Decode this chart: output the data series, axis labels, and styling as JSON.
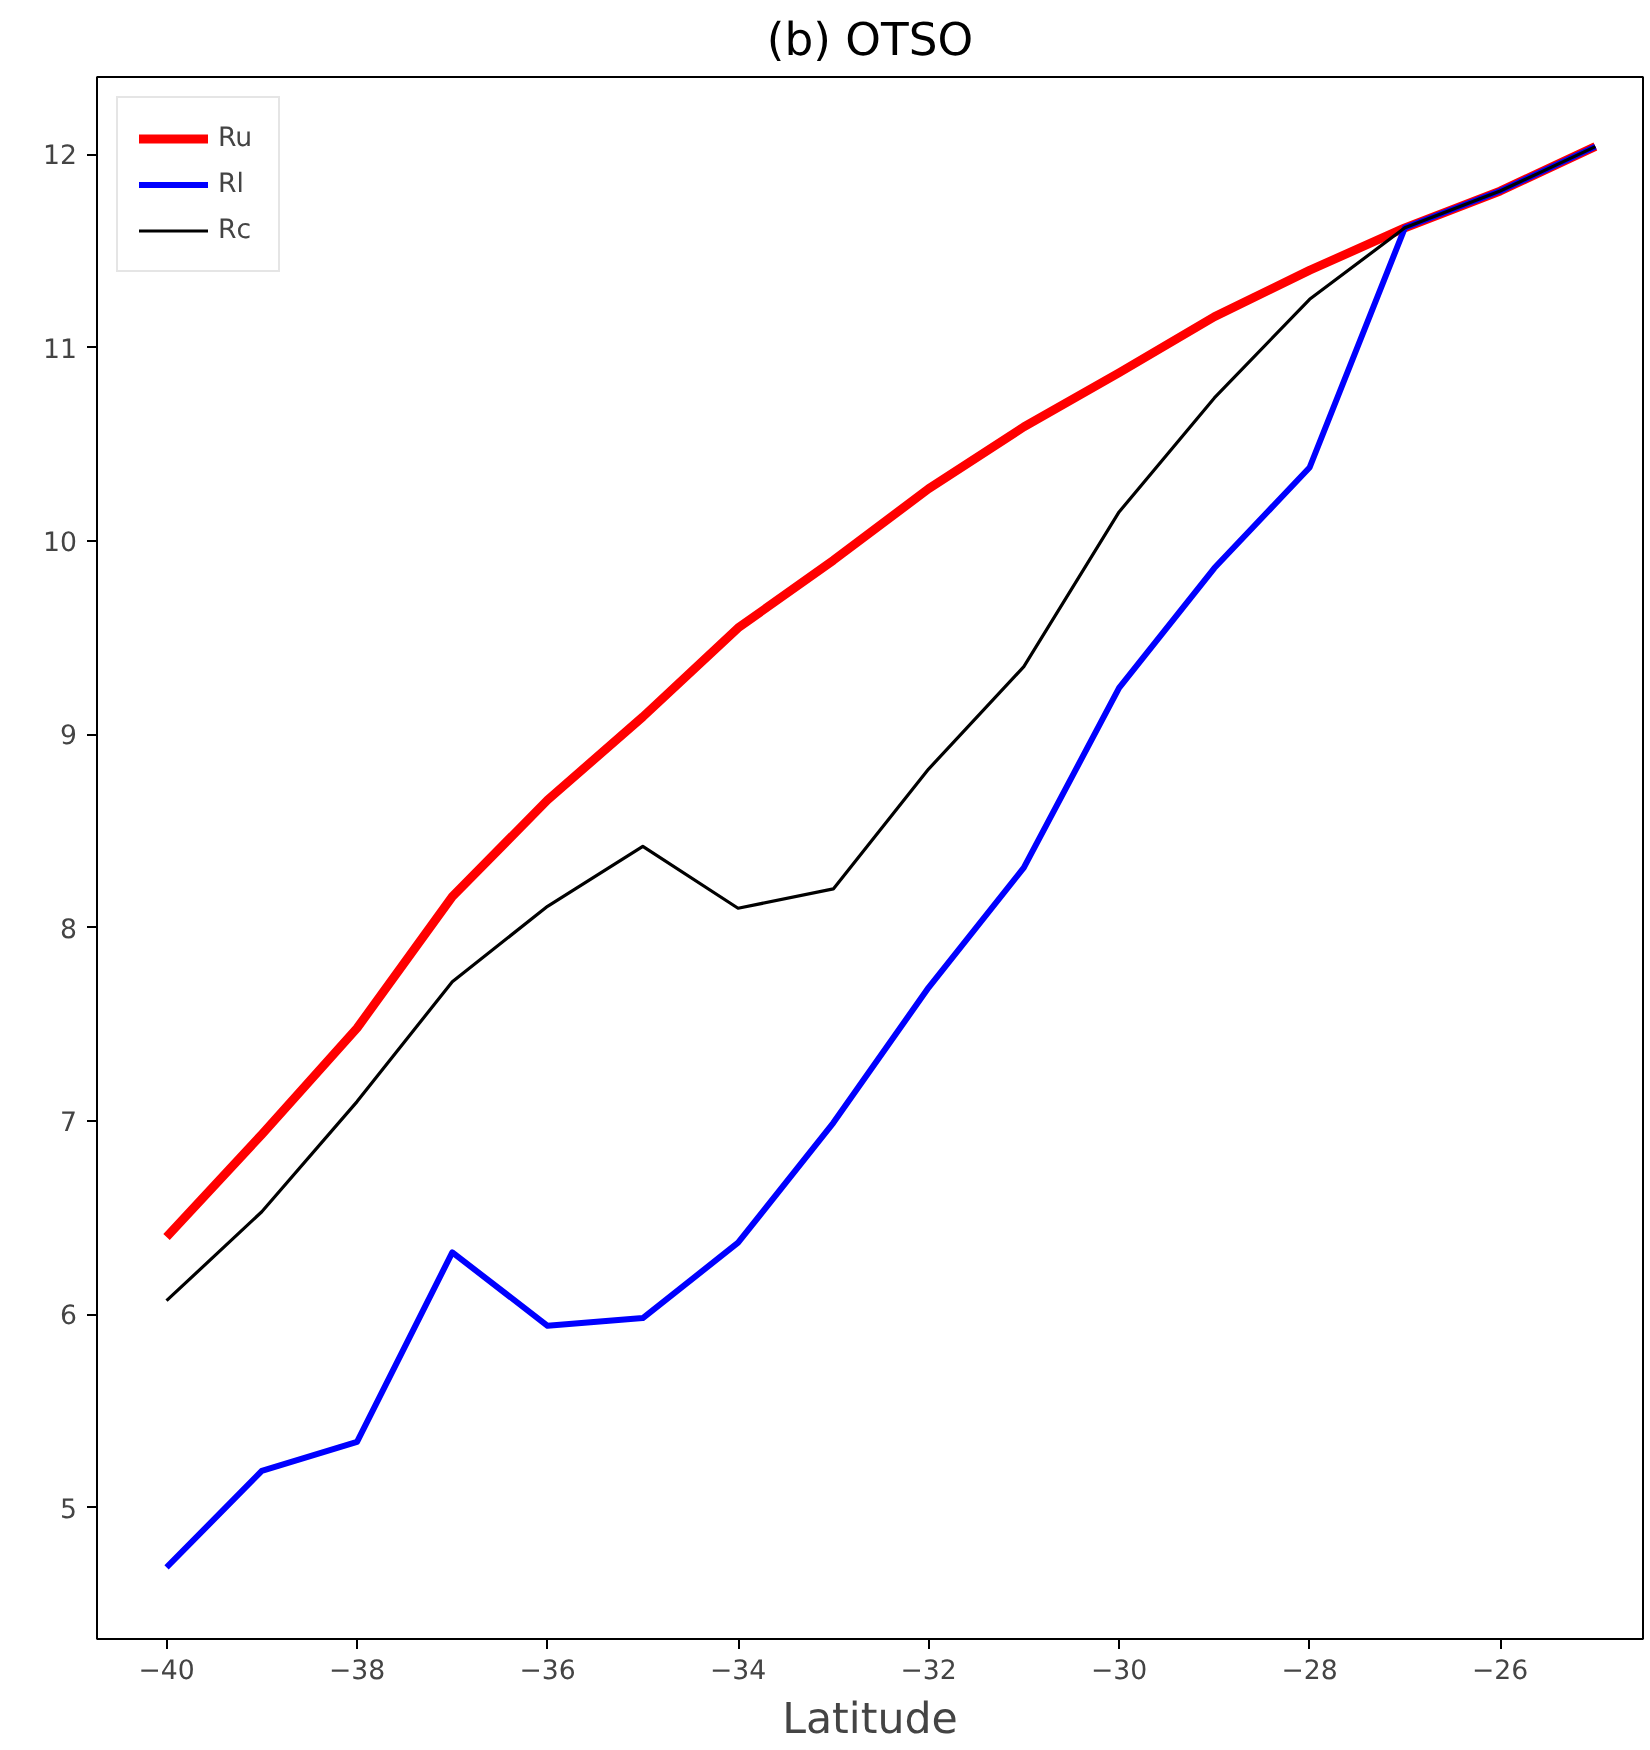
{
  "chart_data": {
    "type": "line",
    "title": "(b) OTSO",
    "xlabel": "Latitude",
    "x": [
      -40,
      -39,
      -38,
      -37,
      -36,
      -35,
      -34,
      -33,
      -32,
      -31,
      -30,
      -29,
      -28,
      -27,
      -26,
      -25
    ],
    "series": [
      {
        "name": "Ru",
        "color": "#ff0000",
        "values": [
          6.4,
          6.93,
          7.48,
          8.16,
          8.66,
          9.09,
          9.55,
          9.9,
          10.27,
          10.59,
          10.87,
          11.16,
          11.4,
          11.62,
          11.81,
          12.04
        ]
      },
      {
        "name": "Rl",
        "color": "#0000ff",
        "values": [
          4.69,
          5.19,
          5.34,
          6.32,
          5.94,
          5.98,
          6.37,
          6.99,
          7.69,
          8.31,
          9.24,
          9.86,
          10.38,
          11.62,
          11.81,
          12.04
        ]
      },
      {
        "name": "Rc",
        "color": "#000000",
        "values": [
          6.07,
          6.53,
          7.1,
          7.72,
          8.11,
          8.42,
          8.1,
          8.2,
          8.82,
          9.35,
          10.15,
          10.74,
          11.25,
          11.62,
          11.81,
          12.04
        ]
      }
    ],
    "xlim": [
      -40.73,
      -24.5
    ],
    "ylim": [
      4.32,
      12.4
    ],
    "xticks": [
      -40,
      -38,
      -36,
      -34,
      -32,
      -30,
      -28,
      -26
    ],
    "yticks": [
      5,
      6,
      7,
      8,
      9,
      10,
      11,
      12
    ],
    "grid": false,
    "legend": "top left",
    "line_style": "solid",
    "marker": "none"
  }
}
